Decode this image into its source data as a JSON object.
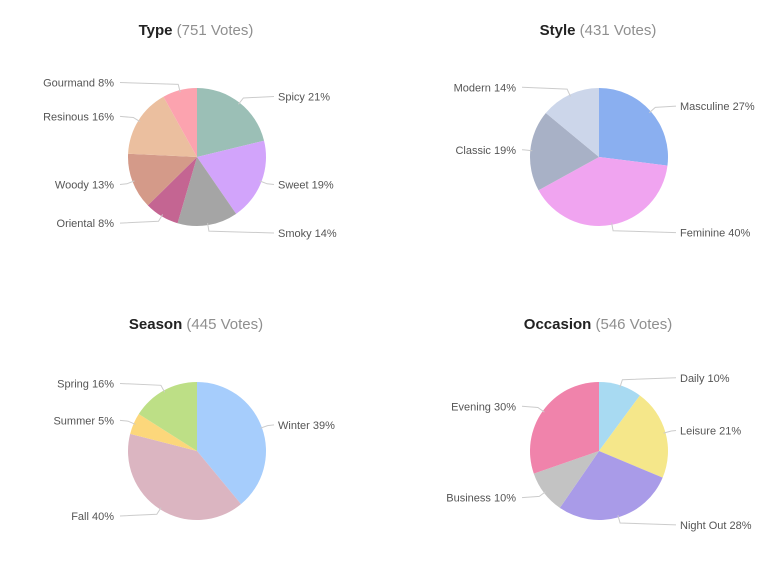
{
  "chart_data": [
    {
      "type": "pie",
      "title": "Type",
      "votes_label": "(751 Votes)",
      "slices": [
        {
          "label": "Spicy 21%",
          "value": 21,
          "color": "#9bbfb6"
        },
        {
          "label": "Sweet 19%",
          "value": 19,
          "color": "#d2a4fb"
        },
        {
          "label": "Smoky 14%",
          "value": 14,
          "color": "#a5a5a5"
        },
        {
          "label": "Oriental 8%",
          "value": 8,
          "color": "#c46592"
        },
        {
          "label": "Woody 13%",
          "value": 13,
          "color": "#d49a89"
        },
        {
          "label": "Resinous 16%",
          "value": 16,
          "color": "#ebbf9f"
        },
        {
          "label": "Gourmand 8%",
          "value": 8,
          "color": "#fca3af"
        }
      ]
    },
    {
      "type": "pie",
      "title": "Style",
      "votes_label": "(431 Votes)",
      "slices": [
        {
          "label": "Masculine 27%",
          "value": 27,
          "color": "#8aaff0"
        },
        {
          "label": "Feminine 40%",
          "value": 40,
          "color": "#f0a4f0"
        },
        {
          "label": "Classic 19%",
          "value": 19,
          "color": "#a8b1c6"
        },
        {
          "label": "Modern 14%",
          "value": 14,
          "color": "#ccd6ea"
        }
      ]
    },
    {
      "type": "pie",
      "title": "Season",
      "votes_label": "(445 Votes)",
      "slices": [
        {
          "label": "Winter 39%",
          "value": 39,
          "color": "#a6cdfc"
        },
        {
          "label": "Fall 40%",
          "value": 40,
          "color": "#dbb5c1"
        },
        {
          "label": "Summer 5%",
          "value": 5,
          "color": "#fcd77b"
        },
        {
          "label": "Spring 16%",
          "value": 16,
          "color": "#bddf86"
        }
      ]
    },
    {
      "type": "pie",
      "title": "Occasion",
      "votes_label": "(546 Votes)",
      "slices": [
        {
          "label": "Daily 10%",
          "value": 10,
          "color": "#a8daf2"
        },
        {
          "label": "Leisure 21%",
          "value": 21,
          "color": "#f5e78a"
        },
        {
          "label": "Night Out 28%",
          "value": 28,
          "color": "#a99be8"
        },
        {
          "label": "Business 10%",
          "value": 10,
          "color": "#c3c3c3"
        },
        {
          "label": "Evening 30%",
          "value": 30,
          "color": "#f083ab"
        }
      ]
    }
  ]
}
